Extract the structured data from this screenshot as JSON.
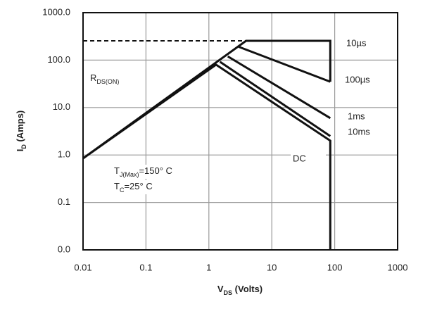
{
  "chart_data": {
    "type": "line",
    "x_label": {
      "text": "V",
      "sub": "DS",
      "after": " (Volts)"
    },
    "y_label": {
      "text": "I",
      "sub": "D",
      "after": " (Amps)"
    },
    "log_x": true,
    "log_y": true,
    "grid": true,
    "xlim": [
      0.01,
      1000
    ],
    "ylim": [
      0.01,
      1000
    ],
    "xticks": [
      0.01,
      0.1,
      1,
      10,
      100,
      1000
    ],
    "yticks": [
      {
        "value": 0.01,
        "label": "0.0"
      },
      {
        "value": 0.1,
        "label": "0.1"
      },
      {
        "value": 1,
        "label": "1.0"
      },
      {
        "value": 10,
        "label": "10.0"
      },
      {
        "value": 100,
        "label": "100.0"
      },
      {
        "value": 1000,
        "label": "1000.0"
      }
    ],
    "series": [
      {
        "name": "10µs",
        "color": "#111111",
        "x": [
          0.01,
          3.9,
          85,
          85
        ],
        "values": [
          0.85,
          255,
          255,
          35
        ]
      },
      {
        "name": "100µs",
        "color": "#111111",
        "x": [
          3,
          85
        ],
        "values": [
          190,
          35
        ]
      },
      {
        "name": "1ms",
        "color": "#111111",
        "x": [
          2,
          85
        ],
        "values": [
          120,
          6
        ]
      },
      {
        "name": "10ms",
        "color": "#111111",
        "x": [
          1.5,
          85
        ],
        "values": [
          92,
          2.5
        ]
      },
      {
        "name": "DC",
        "color": "#111111",
        "x": [
          0.01,
          1.3,
          85,
          85
        ],
        "values": [
          0.85,
          80,
          2,
          0.01
        ]
      }
    ],
    "dashed_limit": {
      "x": [
        0.01,
        3.9
      ],
      "values": [
        255,
        255
      ]
    },
    "annotations": [
      {
        "text": "R",
        "sub": "DS(ON)",
        "after": ""
      },
      {
        "text": "T",
        "sub": "J(Max)",
        "after": "=150° C"
      },
      {
        "text": "T",
        "sub": "C",
        "after": "=25° C"
      }
    ]
  }
}
